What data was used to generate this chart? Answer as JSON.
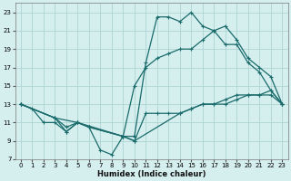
{
  "xlabel": "Humidex (Indice chaleur)",
  "bg_color": "#d5eeee",
  "grid_color": "#aed4d4",
  "line_color": "#1a6b6b",
  "xlim": [
    -0.5,
    23.5
  ],
  "ylim": [
    7,
    24
  ],
  "xticks": [
    0,
    1,
    2,
    3,
    4,
    5,
    6,
    7,
    8,
    9,
    10,
    11,
    12,
    13,
    14,
    15,
    16,
    17,
    18,
    19,
    20,
    21,
    22,
    23
  ],
  "yticks": [
    7,
    9,
    11,
    13,
    15,
    17,
    19,
    21,
    23
  ],
  "series": [
    {
      "x": [
        0,
        1,
        2,
        3,
        4,
        5,
        6,
        7,
        8,
        9,
        10,
        11,
        12,
        13,
        14,
        15,
        16,
        17,
        18,
        19,
        20,
        21,
        22,
        23
      ],
      "y": [
        13,
        12.5,
        11,
        11,
        10,
        11,
        10.5,
        8,
        7.5,
        9.5,
        9.5,
        17.5,
        22.5,
        22.5,
        22,
        23,
        21.5,
        21,
        19.5,
        19.5,
        17.5,
        16.5,
        14.5,
        13
      ]
    },
    {
      "x": [
        0,
        3,
        5,
        9,
        10,
        11,
        12,
        13,
        14,
        15,
        16,
        17,
        18,
        19,
        20,
        21,
        22,
        23
      ],
      "y": [
        13,
        11.5,
        11,
        9.5,
        15,
        17,
        18,
        18.5,
        19,
        19,
        20,
        21,
        21.5,
        20,
        18,
        17,
        16,
        13
      ]
    },
    {
      "x": [
        0,
        3,
        4,
        5,
        6,
        9,
        10,
        11,
        12,
        13,
        14,
        15,
        16,
        17,
        18,
        19,
        20,
        21,
        22,
        23
      ],
      "y": [
        13,
        11.5,
        10.5,
        11,
        10.5,
        9.5,
        9,
        12,
        12,
        12,
        12,
        12.5,
        13,
        13,
        13,
        13.5,
        14,
        14,
        14,
        13
      ]
    },
    {
      "x": [
        0,
        3,
        4,
        5,
        6,
        9,
        10,
        14,
        15,
        16,
        17,
        18,
        19,
        20,
        21,
        22,
        23
      ],
      "y": [
        13,
        11.5,
        10,
        11,
        10.5,
        9.5,
        9,
        12,
        12.5,
        13,
        13,
        13.5,
        14,
        14,
        14,
        14.5,
        13
      ]
    }
  ]
}
